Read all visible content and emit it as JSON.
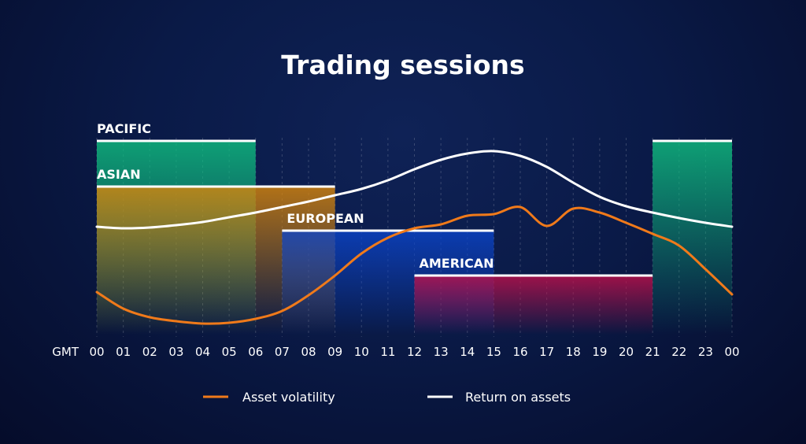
{
  "chart_data": {
    "type": "line",
    "title": "Trading sessions",
    "xlabel": "GMT",
    "x_tick_labels": [
      "00",
      "01",
      "02",
      "03",
      "04",
      "05",
      "06",
      "07",
      "08",
      "09",
      "10",
      "11",
      "12",
      "13",
      "14",
      "15",
      "16",
      "17",
      "18",
      "19",
      "20",
      "21",
      "22",
      "23",
      "00"
    ],
    "x": [
      0,
      1,
      2,
      3,
      4,
      5,
      6,
      7,
      8,
      9,
      10,
      11,
      12,
      13,
      14,
      15,
      16,
      17,
      18,
      19,
      20,
      21,
      22,
      23,
      24
    ],
    "ylim": [
      0,
      100
    ],
    "grid": "vertical dashed",
    "legend_position": "bottom-center",
    "series": [
      {
        "name": "Asset volatility",
        "color": "#f07a1a",
        "values": [
          19.6,
          11.2,
          6.8,
          4.8,
          3.6,
          4,
          6,
          10,
          18,
          28,
          39.2,
          47.2,
          52,
          54,
          58.4,
          59.2,
          62.8,
          53.2,
          62,
          60,
          54.8,
          49.2,
          43.2,
          31.2,
          18.4
        ]
      },
      {
        "name": "Return on assets",
        "color": "#ffffff",
        "values": [
          52.8,
          52,
          52.4,
          53.6,
          55.2,
          57.6,
          60,
          62.8,
          65.6,
          68.8,
          72,
          76.4,
          82,
          86.8,
          90,
          91.2,
          88.8,
          83.2,
          75.2,
          68,
          63.2,
          60,
          57.2,
          54.8,
          52.8
        ]
      }
    ],
    "sessions": [
      {
        "name": "PACIFIC",
        "ranges": [
          [
            0,
            6
          ],
          [
            21,
            24
          ]
        ],
        "level": 96.4,
        "color": "#0fbf80"
      },
      {
        "name": "ASIAN",
        "ranges": [
          [
            0,
            9
          ]
        ],
        "level": 73.2,
        "color": "#d9860a"
      },
      {
        "name": "EUROPEAN",
        "ranges": [
          [
            7,
            15
          ]
        ],
        "level": 50.8,
        "color": "#0b44c9"
      },
      {
        "name": "AMERICAN",
        "ranges": [
          [
            12,
            21
          ]
        ],
        "level": 28,
        "color": "#c0104a"
      }
    ]
  }
}
